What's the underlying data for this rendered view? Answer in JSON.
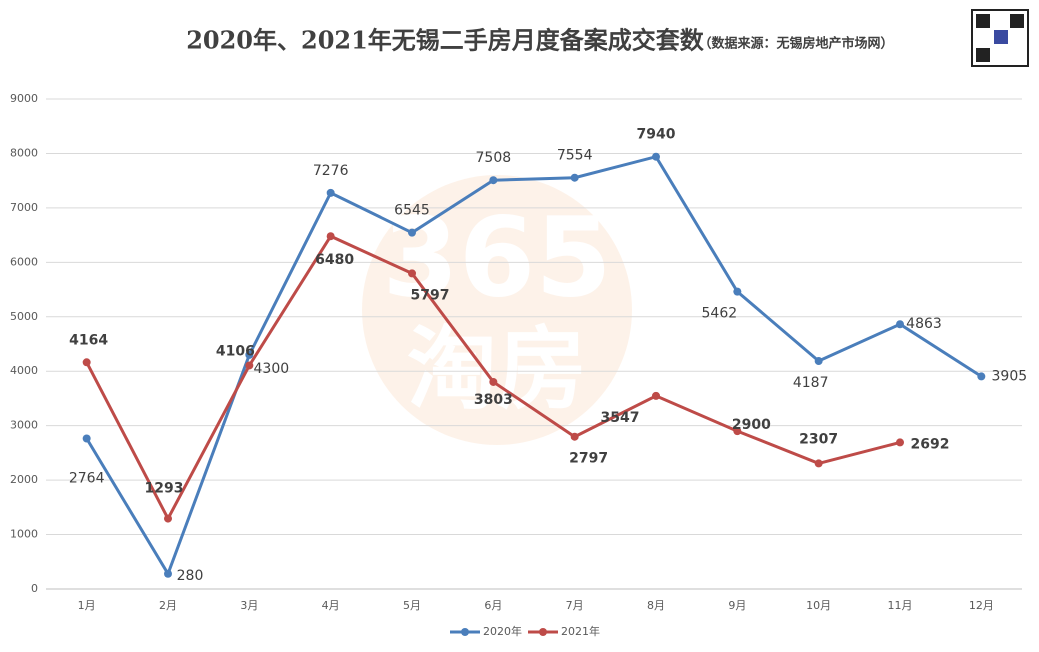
{
  "chart_data": {
    "type": "line",
    "title": "2020年、2021年无锡二手房月度备案成交套数",
    "subtitle": "（数据来源：无锡房地产市场网）",
    "watermark": [
      "365",
      "淘房"
    ],
    "categories": [
      "1月",
      "2月",
      "3月",
      "4月",
      "5月",
      "6月",
      "7月",
      "8月",
      "9月",
      "10月",
      "11月",
      "12月"
    ],
    "series": [
      {
        "name": "2020年",
        "color": "#4a7ebb",
        "values": [
          2764,
          280,
          4300,
          7276,
          6545,
          7508,
          7554,
          7940,
          5462,
          4187,
          4863,
          3905
        ]
      },
      {
        "name": "2021年",
        "color": "#be4b48",
        "values": [
          4164,
          1293,
          4106,
          6480,
          5797,
          3803,
          2797,
          3547,
          2900,
          2307,
          2692,
          null
        ]
      }
    ],
    "ylim": [
      0,
      9000
    ],
    "yticks": [
      0,
      1000,
      2000,
      3000,
      4000,
      5000,
      6000,
      7000,
      8000,
      9000
    ],
    "grid": true,
    "legend": "bottom"
  }
}
